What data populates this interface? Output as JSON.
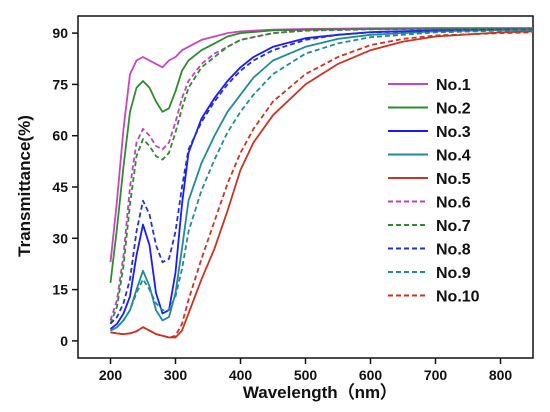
{
  "chart_data": {
    "type": "line",
    "xlabel": "Wavelength（nm）",
    "ylabel": "Transmittance(%)",
    "xlim": [
      150,
      850
    ],
    "ylim": [
      -5,
      95
    ],
    "xticks": [
      200,
      300,
      400,
      500,
      600,
      700,
      800
    ],
    "yticks": [
      0,
      15,
      30,
      45,
      60,
      75,
      90
    ],
    "legend_position": "center-right",
    "grid": false,
    "series": [
      {
        "name": "No.1",
        "color": "#cc44bb",
        "dash": false,
        "x": [
          200,
          210,
          220,
          230,
          240,
          250,
          260,
          270,
          280,
          290,
          300,
          310,
          320,
          340,
          360,
          380,
          400,
          450,
          500,
          600,
          700,
          800,
          850
        ],
        "y": [
          23,
          41,
          62,
          78,
          82,
          83,
          82,
          81,
          80,
          82,
          83,
          85,
          86,
          88,
          89,
          90,
          90.5,
          91,
          91.2,
          91.4,
          91.5,
          91.5,
          91.5
        ]
      },
      {
        "name": "No.2",
        "color": "#2e8b2e",
        "dash": false,
        "x": [
          200,
          210,
          220,
          230,
          240,
          250,
          260,
          270,
          280,
          290,
          300,
          310,
          320,
          340,
          360,
          380,
          400,
          450,
          500,
          600,
          700,
          800,
          850
        ],
        "y": [
          17,
          33,
          51,
          67,
          74,
          76,
          74,
          70,
          67,
          68,
          73,
          79,
          82,
          85,
          87,
          89,
          90,
          90.8,
          91,
          91.2,
          91.3,
          91.3,
          91.3
        ]
      },
      {
        "name": "No.3",
        "color": "#1a1aff",
        "dash": false,
        "x": [
          200,
          210,
          220,
          230,
          240,
          250,
          260,
          270,
          280,
          290,
          300,
          310,
          320,
          340,
          360,
          380,
          400,
          420,
          450,
          500,
          550,
          600,
          700,
          800,
          850
        ],
        "y": [
          3.5,
          5,
          8,
          13,
          25,
          34,
          28,
          14,
          8,
          9,
          20,
          40,
          55,
          65,
          71,
          76,
          80,
          83,
          86,
          88.5,
          89.5,
          90.3,
          90.8,
          91,
          91
        ]
      },
      {
        "name": "No.4",
        "color": "#208a9a",
        "dash": false,
        "x": [
          200,
          210,
          220,
          230,
          240,
          250,
          260,
          270,
          280,
          290,
          300,
          310,
          320,
          340,
          360,
          380,
          400,
          420,
          450,
          500,
          550,
          600,
          700,
          800,
          850
        ],
        "y": [
          3,
          4,
          6,
          9,
          15,
          20.5,
          16,
          9,
          6,
          7,
          14,
          27,
          41,
          52,
          60,
          67,
          72,
          77,
          82,
          86,
          88.3,
          89.5,
          90.5,
          90.9,
          91
        ]
      },
      {
        "name": "No.5",
        "color": "#cc3322",
        "dash": false,
        "x": [
          200,
          210,
          220,
          230,
          240,
          250,
          260,
          270,
          280,
          290,
          300,
          310,
          320,
          340,
          360,
          380,
          400,
          420,
          450,
          500,
          550,
          600,
          650,
          700,
          800,
          850
        ],
        "y": [
          2.5,
          2.2,
          2,
          2.2,
          2.8,
          4,
          3,
          2,
          1.5,
          1,
          1,
          3,
          8,
          18,
          27,
          38,
          50,
          58,
          66,
          75,
          81,
          85,
          87.5,
          89,
          90.2,
          90.5
        ]
      },
      {
        "name": "No.6",
        "color": "#c040c0",
        "dash": true,
        "x": [
          200,
          210,
          220,
          230,
          240,
          250,
          260,
          270,
          280,
          290,
          300,
          310,
          320,
          340,
          360,
          380,
          400,
          450,
          500,
          600,
          700,
          800,
          850
        ],
        "y": [
          6,
          12,
          25,
          45,
          58,
          62,
          60,
          57,
          56,
          58,
          64,
          71,
          76,
          81,
          84,
          86,
          88,
          90,
          90.8,
          91.2,
          91.3,
          91.3,
          91.3
        ]
      },
      {
        "name": "No.7",
        "color": "#2e8b2e",
        "dash": true,
        "x": [
          200,
          210,
          220,
          230,
          240,
          250,
          260,
          270,
          280,
          290,
          300,
          310,
          320,
          340,
          360,
          380,
          400,
          450,
          500,
          600,
          700,
          800,
          850
        ],
        "y": [
          5,
          10,
          22,
          40,
          54,
          59,
          57,
          54,
          53,
          55,
          61,
          68,
          74,
          80,
          83,
          86,
          88,
          90,
          90.7,
          91.1,
          91.2,
          91.2,
          91.2
        ]
      },
      {
        "name": "No.8",
        "color": "#2233cc",
        "dash": true,
        "x": [
          200,
          210,
          220,
          230,
          240,
          250,
          260,
          270,
          280,
          290,
          300,
          310,
          320,
          340,
          360,
          380,
          400,
          420,
          450,
          500,
          550,
          600,
          700,
          800,
          850
        ],
        "y": [
          5,
          7,
          11,
          18,
          32,
          41,
          37,
          28,
          23,
          24,
          32,
          45,
          56,
          64,
          70,
          75,
          79,
          82,
          85,
          88,
          89.5,
          90.2,
          90.7,
          91,
          91
        ]
      },
      {
        "name": "No.9",
        "color": "#208a9a",
        "dash": true,
        "x": [
          200,
          210,
          220,
          230,
          240,
          250,
          260,
          270,
          280,
          290,
          300,
          310,
          320,
          340,
          360,
          380,
          400,
          420,
          450,
          500,
          550,
          600,
          700,
          800,
          850
        ],
        "y": [
          3,
          4,
          6,
          9,
          14,
          18,
          15,
          11,
          9,
          9,
          13,
          21,
          32,
          44,
          53,
          61,
          67,
          72,
          78,
          84,
          87,
          88.8,
          90.2,
          90.7,
          90.8
        ]
      },
      {
        "name": "No.10",
        "color": "#cc3322",
        "dash": true,
        "x": [
          200,
          210,
          220,
          230,
          240,
          250,
          260,
          270,
          280,
          290,
          300,
          310,
          320,
          340,
          360,
          380,
          400,
          420,
          450,
          500,
          550,
          600,
          650,
          700,
          800,
          850
        ],
        "y": [
          2.5,
          2.2,
          2,
          2.2,
          2.8,
          4,
          3,
          2,
          1.5,
          1,
          1.5,
          5,
          12,
          24,
          35,
          46,
          55,
          62,
          70,
          78,
          83,
          86.5,
          88.3,
          89.3,
          90,
          90.2
        ]
      }
    ]
  }
}
